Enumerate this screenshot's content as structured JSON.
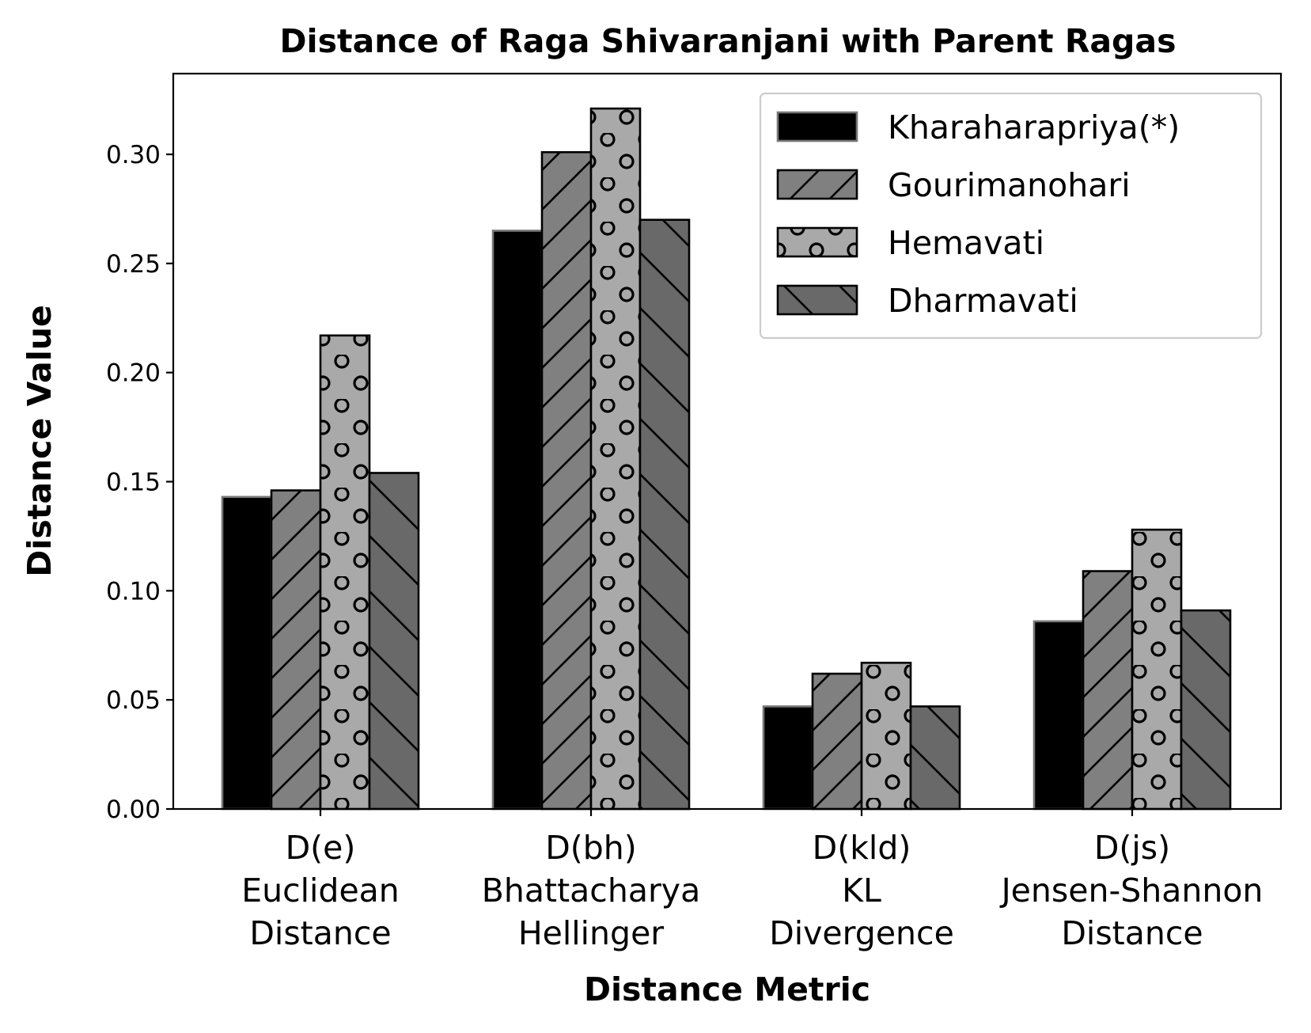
{
  "chart_data": {
    "type": "bar",
    "title": "Distance of Raga Shivaranjani with Parent Ragas",
    "xlabel": "Distance Metric",
    "ylabel": "Distance Value",
    "ylim": [
      0,
      0.337
    ],
    "yticks": [
      "0.00",
      "0.05",
      "0.10",
      "0.15",
      "0.20",
      "0.25",
      "0.30"
    ],
    "grid": false,
    "legend_position": "top-right",
    "categories": [
      [
        "D(e)",
        "Euclidean",
        "Distance"
      ],
      [
        "D(bh)",
        "Bhattacharya",
        "Hellinger"
      ],
      [
        "D(kld)",
        "KL",
        "Divergence"
      ],
      [
        "D(js)",
        "Jensen-Shannon",
        "Distance"
      ]
    ],
    "series": [
      {
        "name": "Kharaharapriya(*)",
        "values": [
          0.143,
          0.265,
          0.047,
          0.086
        ],
        "color": "#000000",
        "edge": "#777777",
        "hatch": "none"
      },
      {
        "name": "Gourimanohari",
        "values": [
          0.146,
          0.301,
          0.062,
          0.109
        ],
        "color": "#808080",
        "edge": "#000000",
        "hatch": "diagonal"
      },
      {
        "name": "Hemavati",
        "values": [
          0.217,
          0.321,
          0.067,
          0.128
        ],
        "color": "#a9a9a9",
        "edge": "#000000",
        "hatch": "circles"
      },
      {
        "name": "Dharmavati",
        "values": [
          0.154,
          0.27,
          0.047,
          0.091
        ],
        "color": "#696969",
        "edge": "#000000",
        "hatch": "backdiagonal"
      }
    ]
  }
}
